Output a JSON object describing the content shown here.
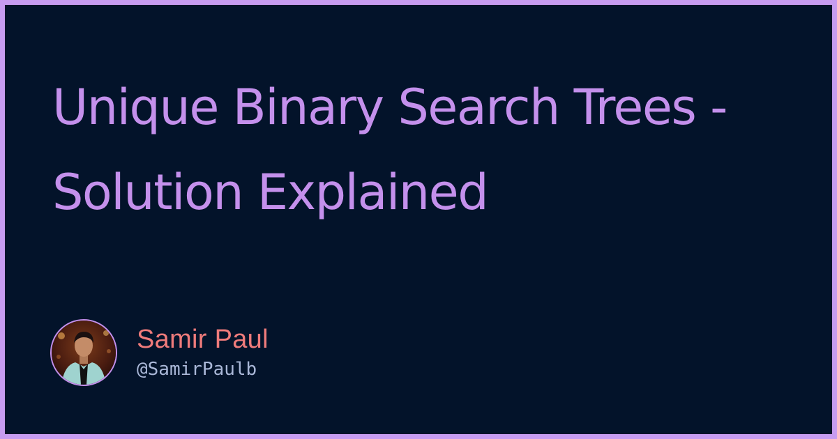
{
  "title": "Unique Binary Search Trees - Solution Explained",
  "author": {
    "name": "Samir Paul",
    "handle": "@SamirPaulb",
    "avatar_icon": "profile-photo"
  },
  "colors": {
    "frame": "#c79cf0",
    "background": "#03132a",
    "title": "#c490ec",
    "name": "#ef7b7b",
    "handle": "#aab8d8"
  }
}
